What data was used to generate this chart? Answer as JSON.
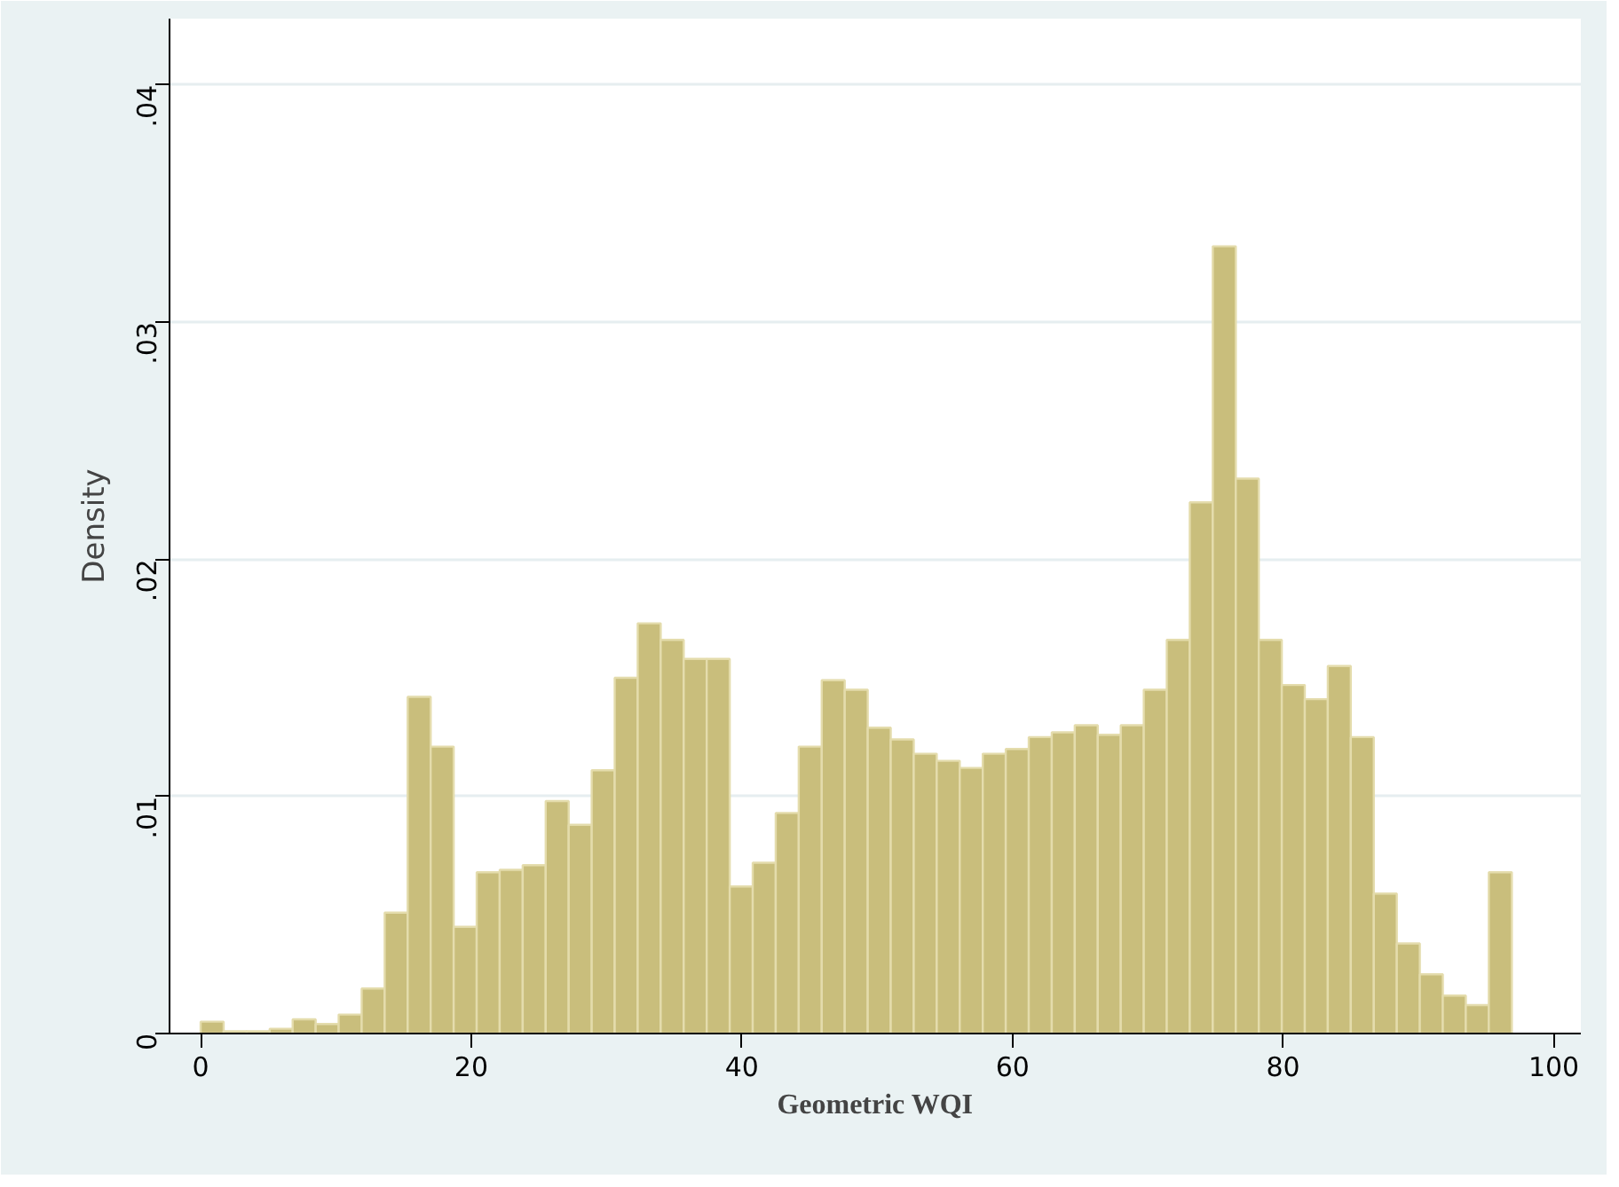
{
  "chart_data": {
    "type": "histogram",
    "xlabel": "Geometric WQI",
    "ylabel": "Density",
    "bins": [
      0,
      1.7,
      3.4,
      5.1,
      6.8,
      8.5,
      10.2,
      11.9,
      13.6,
      15.3,
      17,
      18.7,
      20.4,
      22.1,
      23.8,
      25.5,
      27.2,
      28.9,
      30.6,
      32.3,
      34,
      35.7,
      37.4,
      39.1,
      40.8,
      42.5,
      44.2,
      45.9,
      47.6,
      49.3,
      51,
      52.7,
      54.4,
      56.1,
      57.8,
      59.5,
      61.2,
      62.9,
      64.6,
      66.3,
      68,
      69.7,
      71.4,
      73.1,
      74.8,
      76.5,
      78.2,
      79.9,
      81.6,
      83.3,
      85,
      86.7,
      88.4,
      90.1,
      91.8,
      93.5,
      95.2,
      96.9
    ],
    "values": [
      0.0005,
      0.0001,
      0.0001,
      0.0002,
      0.0006,
      0.0004,
      0.0008,
      0.0019,
      0.0051,
      0.0142,
      0.0121,
      0.0045,
      0.0068,
      0.0069,
      0.0071,
      0.0098,
      0.0088,
      0.0111,
      0.015,
      0.0173,
      0.0166,
      0.0158,
      0.0158,
      0.0062,
      0.0072,
      0.0093,
      0.0121,
      0.0149,
      0.0145,
      0.0129,
      0.0124,
      0.0118,
      0.0115,
      0.0112,
      0.0118,
      0.012,
      0.0125,
      0.0127,
      0.013,
      0.0126,
      0.013,
      0.0145,
      0.0166,
      0.0224,
      0.0332,
      0.0234,
      0.0166,
      0.0147,
      0.0141,
      0.0155,
      0.0125,
      0.0059,
      0.0038,
      0.0025,
      0.0016,
      0.0012,
      0.0068
    ],
    "color": "#c9be7c",
    "xlim": [
      -2.3,
      102
    ],
    "ylim": [
      0,
      0.0428
    ],
    "xticks": [
      0,
      20,
      40,
      60,
      80,
      100
    ],
    "yticks": [
      {
        "value": 0,
        "label": "0"
      },
      {
        "value": 0.01,
        "label": ".01"
      },
      {
        "value": 0.02,
        "label": ".02"
      },
      {
        "value": 0.03,
        "label": ".03"
      },
      {
        "value": 0.04,
        "label": ".04"
      }
    ],
    "grid": "y"
  }
}
